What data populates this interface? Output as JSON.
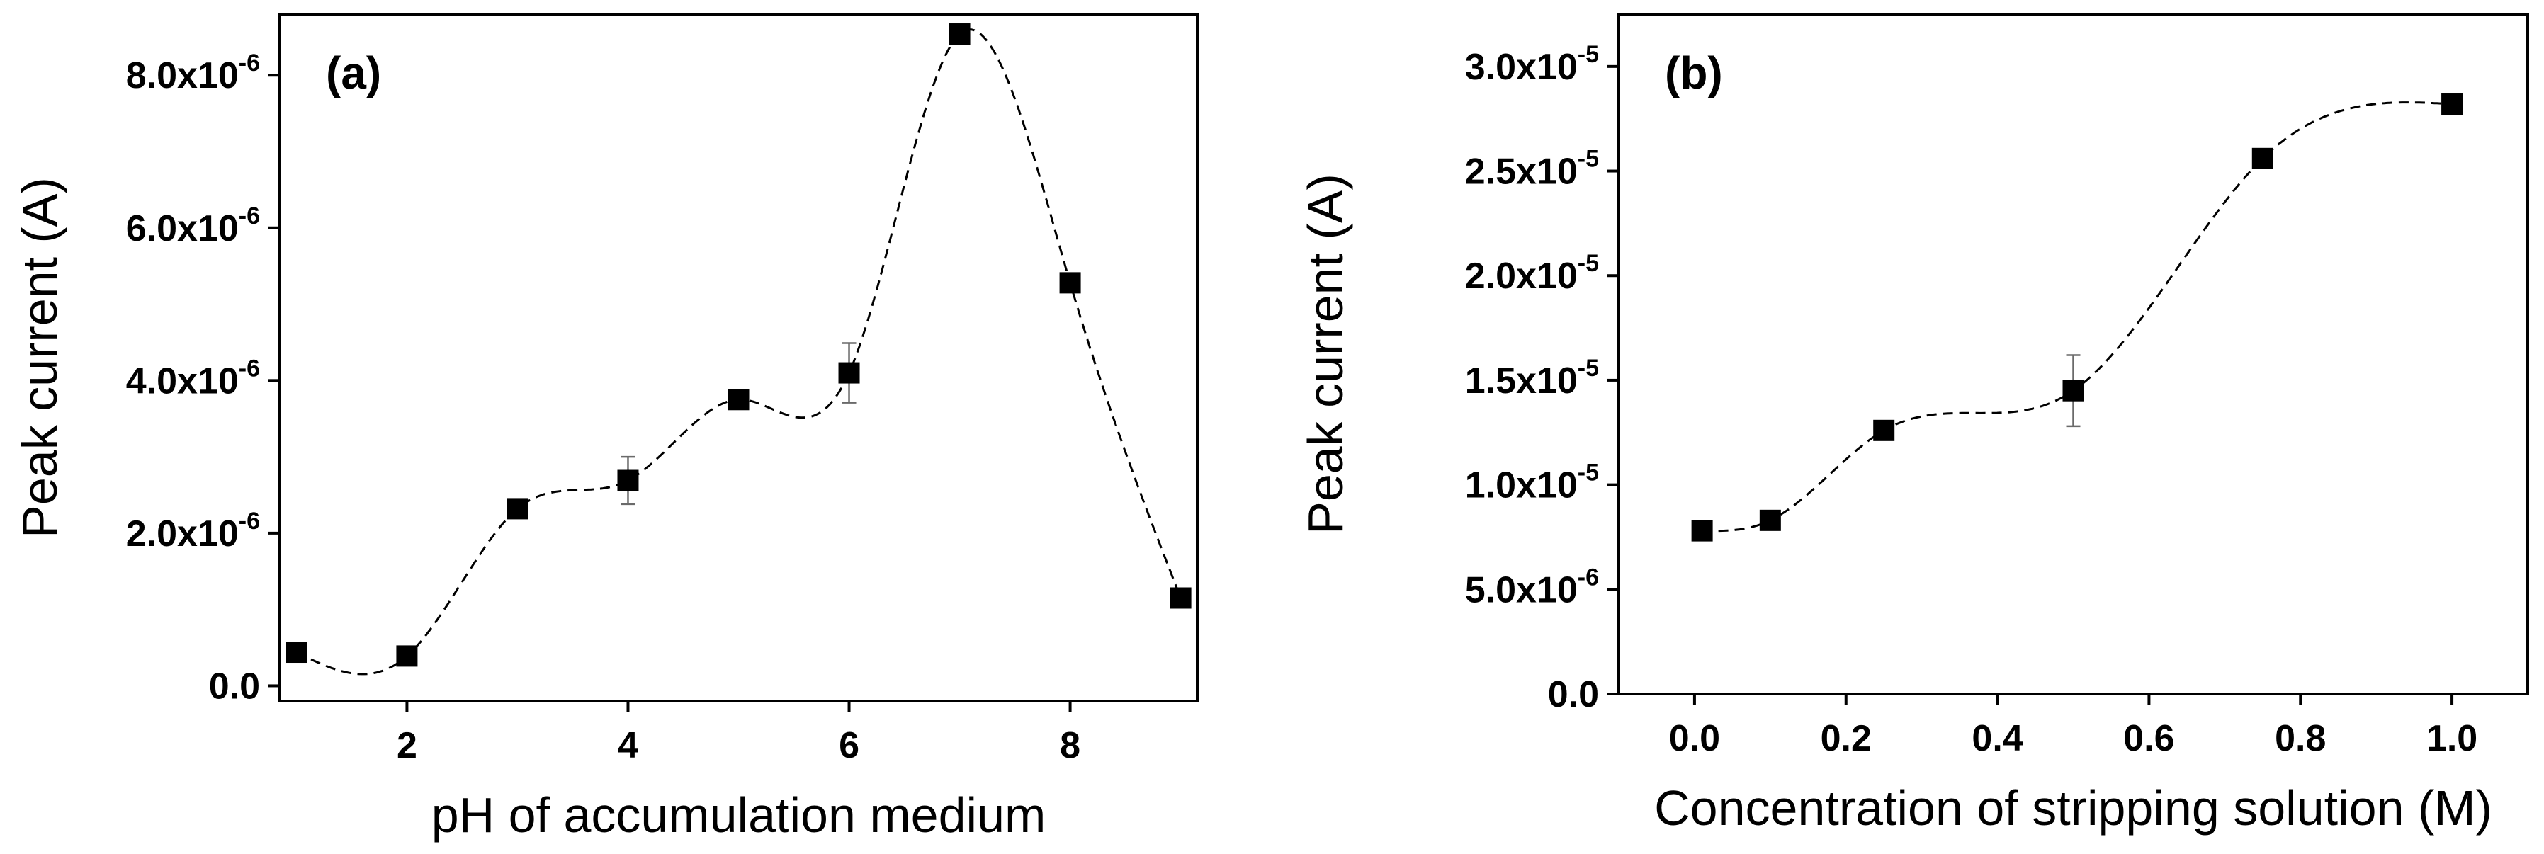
{
  "chart_data": [
    {
      "type": "scatter",
      "panel_label": "(a)",
      "xlabel": "pH of accumulation medium",
      "ylabel": "Peak current (A)",
      "xlim": [
        0.85,
        9.15
      ],
      "ylim": [
        -2e-07,
        8.8e-06
      ],
      "xticks": [
        2,
        4,
        6,
        8
      ],
      "yticks": [
        {
          "value": 0,
          "mantissa": "0.0",
          "exp": ""
        },
        {
          "value": 2e-06,
          "mantissa": "2.0x10",
          "exp": "-6"
        },
        {
          "value": 4e-06,
          "mantissa": "4.0x10",
          "exp": "-6"
        },
        {
          "value": 6e-06,
          "mantissa": "6.0x10",
          "exp": "-6"
        },
        {
          "value": 8e-06,
          "mantissa": "8.0x10",
          "exp": "-6"
        }
      ],
      "series": [
        {
          "x": [
            1,
            2,
            3,
            4,
            5,
            6,
            7,
            8,
            9
          ],
          "y": [
            4.4e-07,
            3.9e-07,
            2.32e-06,
            2.69e-06,
            3.75e-06,
            4.1e-06,
            8.54e-06,
            5.28e-06,
            1.15e-06
          ],
          "err": [
            0,
            0,
            0,
            3.1e-07,
            0,
            3.9e-07,
            0,
            0,
            0
          ]
        }
      ],
      "fit": "dashed smooth curve"
    },
    {
      "type": "scatter",
      "panel_label": "(b)",
      "xlabel": "Concentration of stripping solution (M)",
      "ylabel": "Peak current (A)",
      "xlim": [
        -0.1,
        1.1
      ],
      "ylim": [
        0,
        3.25e-05
      ],
      "xticks": [
        {
          "value": 0.0,
          "label": "0.0"
        },
        {
          "value": 0.2,
          "label": "0.2"
        },
        {
          "value": 0.4,
          "label": "0.4"
        },
        {
          "value": 0.6,
          "label": "0.6"
        },
        {
          "value": 0.8,
          "label": "0.8"
        },
        {
          "value": 1.0,
          "label": "1.0"
        }
      ],
      "yticks": [
        {
          "value": 0,
          "mantissa": "0.0",
          "exp": ""
        },
        {
          "value": 5e-06,
          "mantissa": "5.0x10",
          "exp": "-6"
        },
        {
          "value": 1e-05,
          "mantissa": "1.0x10",
          "exp": "-5"
        },
        {
          "value": 1.5e-05,
          "mantissa": "1.5x10",
          "exp": "-5"
        },
        {
          "value": 2e-05,
          "mantissa": "2.0x10",
          "exp": "-5"
        },
        {
          "value": 2.5e-05,
          "mantissa": "2.5x10",
          "exp": "-5"
        },
        {
          "value": 3e-05,
          "mantissa": "3.0x10",
          "exp": "-5"
        }
      ],
      "series": [
        {
          "x": [
            0.01,
            0.1,
            0.25,
            0.5,
            0.75,
            1.0
          ],
          "y": [
            7.8e-06,
            8.3e-06,
            1.26e-05,
            1.45e-05,
            2.56e-05,
            2.82e-05
          ],
          "err": [
            0,
            0,
            0,
            1.7e-06,
            0,
            0
          ]
        }
      ],
      "fit": "dashed smooth curve"
    }
  ]
}
